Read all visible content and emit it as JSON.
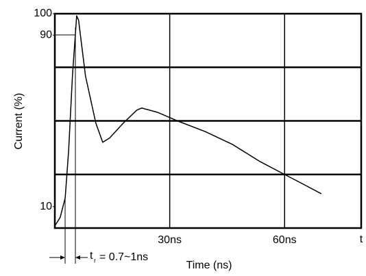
{
  "chart_data": {
    "type": "line",
    "y_label": "Current (%)",
    "x_label": "Time (ns)",
    "x_end_label": "t",
    "annotation": {
      "symbol": "t",
      "subscript": "r",
      "text": "= 0.7~1ns"
    },
    "x": [
      0,
      1.4,
      2.7,
      3.6,
      4.6,
      5.7,
      6.2,
      8,
      10.7,
      12.5,
      14.3,
      17.9,
      21.4,
      22.7,
      26.8,
      32,
      39.3,
      46.4,
      53.6,
      60,
      64.3,
      69.6
    ],
    "series": [
      {
        "color": "#000000",
        "values": [
          1,
          5,
          14,
          36,
          71,
          99,
          97,
          71,
          49,
          40,
          42,
          49,
          55,
          56,
          54,
          50,
          45,
          39,
          31,
          25,
          21,
          16
        ]
      }
    ],
    "xlim": [
      0,
      80
    ],
    "ylim": [
      0,
      100
    ],
    "xticks": [
      {
        "value": 30,
        "label": "30ns"
      },
      {
        "value": 60,
        "label": "60ns"
      }
    ],
    "yticks": [
      10,
      90,
      100
    ],
    "ygrid": [
      25,
      50,
      75
    ],
    "grid": true
  }
}
